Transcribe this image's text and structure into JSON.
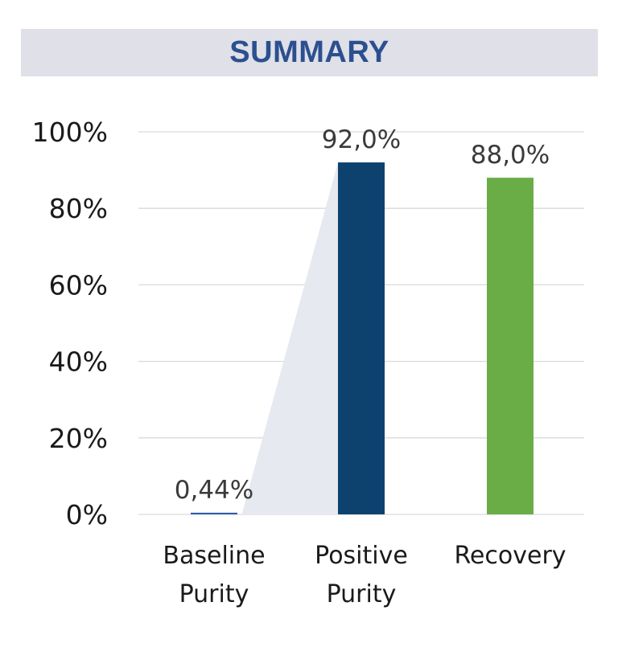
{
  "header": {
    "title": "SUMMARY"
  },
  "colors": {
    "title_bg": "#dfe0e8",
    "title_text": "#2c4f8f",
    "gridline": "#d9d9d9",
    "connector": "#e6e9f0"
  },
  "chart_data": {
    "type": "bar",
    "title": "SUMMARY",
    "categories": [
      [
        "Baseline",
        "Purity"
      ],
      [
        "Positive",
        "Purity"
      ],
      [
        "Recovery"
      ]
    ],
    "values": [
      0.44,
      92.0,
      88.0
    ],
    "data_labels": [
      "0,44%",
      "92,0%",
      "88,0%"
    ],
    "bar_colors": [
      "#2f5da8",
      "#0c426d",
      "#6aad46"
    ],
    "ylim": [
      0,
      100
    ],
    "yticks": [
      0,
      20,
      40,
      60,
      80,
      100
    ],
    "ytick_labels": [
      "0%",
      "20%",
      "40%",
      "60%",
      "80%",
      "100%"
    ],
    "xlabel": "",
    "ylabel": "",
    "grid": true,
    "legend": "none"
  }
}
